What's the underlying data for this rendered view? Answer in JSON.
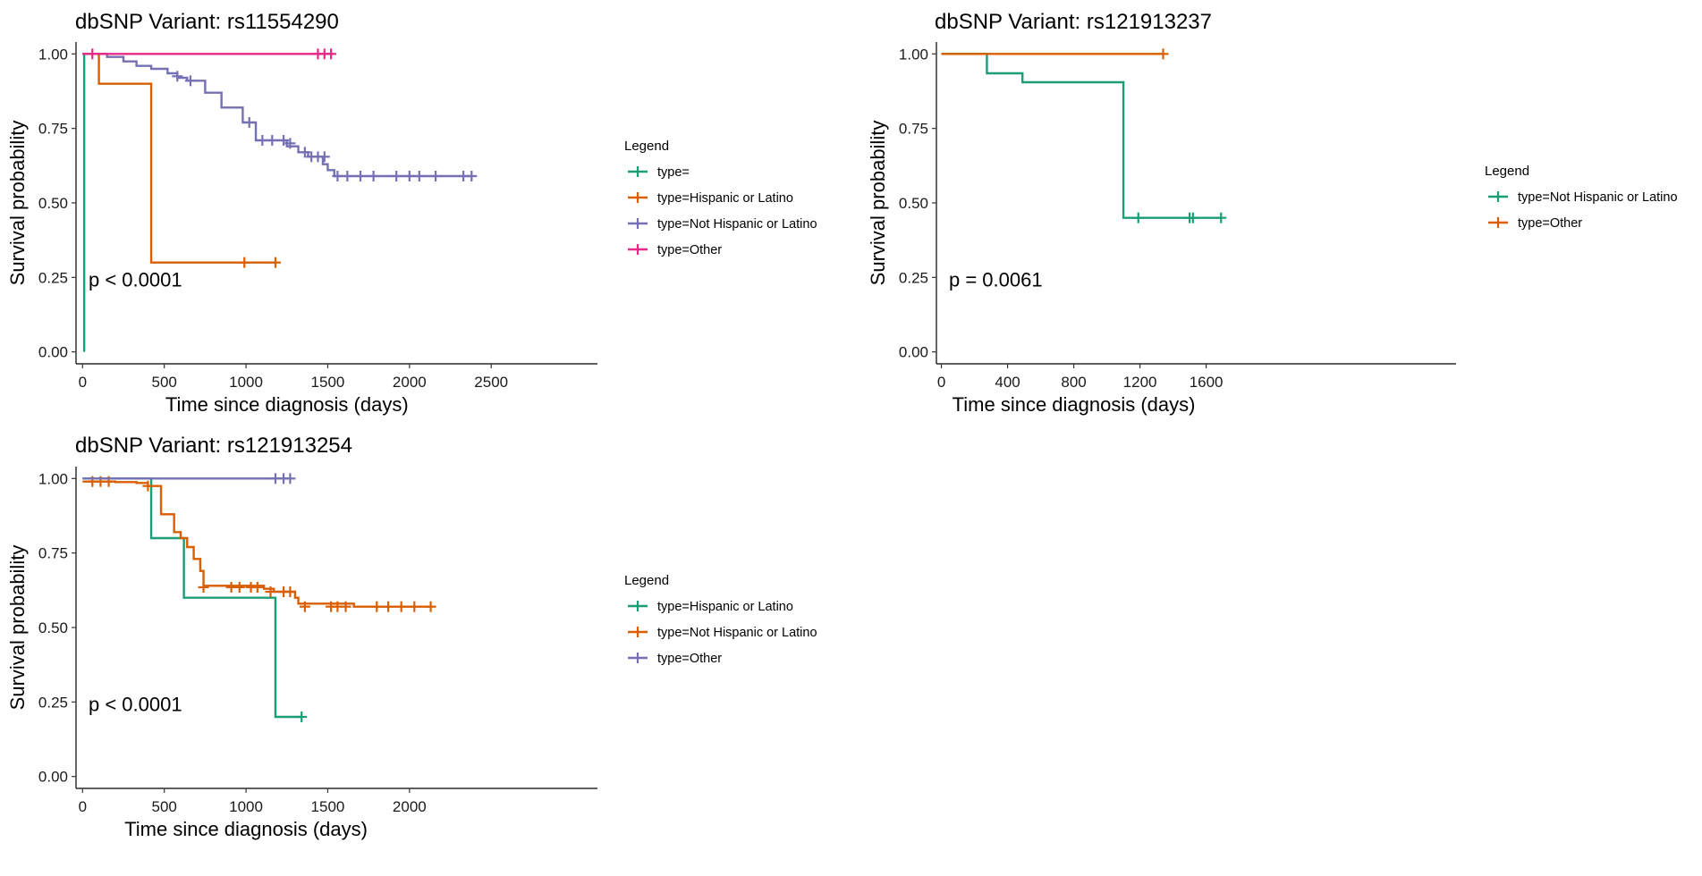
{
  "chart_data": [
    {
      "type": "line",
      "title": "dbSNP Variant: rs11554290",
      "xlabel": "Time since diagnosis (days)",
      "ylabel": "Survival probability",
      "xlim": [
        -40,
        3150
      ],
      "ylim": [
        -0.04,
        1.04
      ],
      "xticks": [
        0,
        500,
        1000,
        1500,
        2000,
        2500
      ],
      "xtick_labels": [
        "0",
        "500",
        "1000",
        "1500",
        "2000",
        "2500"
      ],
      "yticks": [
        0,
        0.25,
        0.5,
        0.75,
        1
      ],
      "ytick_labels": [
        "0.00",
        "0.25",
        "0.50",
        "0.75",
        "1.00"
      ],
      "pvalue": "p < 0.0001",
      "legend": {
        "title": "Legend",
        "position": "right"
      },
      "grid": false,
      "series": [
        {
          "name": "type=",
          "color": "#1b9e77",
          "steps": [
            [
              0,
              1
            ],
            [
              10,
              0
            ]
          ],
          "censors": []
        },
        {
          "name": "type=Hispanic or Latino",
          "color": "#d95f02",
          "steps": [
            [
              0,
              1
            ],
            [
              100,
              0.9
            ],
            [
              420,
              0.3
            ],
            [
              1190,
              0.3
            ]
          ],
          "censors": [
            [
              990,
              0.3
            ],
            [
              1180,
              0.3
            ]
          ]
        },
        {
          "name": "type=Not Hispanic or Latino",
          "color": "#7570b3",
          "steps": [
            [
              0,
              1
            ],
            [
              150,
              0.99
            ],
            [
              250,
              0.975
            ],
            [
              330,
              0.96
            ],
            [
              420,
              0.95
            ],
            [
              520,
              0.935
            ],
            [
              580,
              0.92
            ],
            [
              640,
              0.91
            ],
            [
              750,
              0.87
            ],
            [
              850,
              0.82
            ],
            [
              980,
              0.77
            ],
            [
              1060,
              0.71
            ],
            [
              1250,
              0.69
            ],
            [
              1320,
              0.67
            ],
            [
              1380,
              0.655
            ],
            [
              1470,
              0.63
            ],
            [
              1500,
              0.61
            ],
            [
              1540,
              0.59
            ],
            [
              2390,
              0.59
            ]
          ],
          "censors": [
            [
              580,
              0.925
            ],
            [
              660,
              0.91
            ],
            [
              1020,
              0.77
            ],
            [
              1100,
              0.71
            ],
            [
              1160,
              0.71
            ],
            [
              1230,
              0.71
            ],
            [
              1270,
              0.7
            ],
            [
              1360,
              0.67
            ],
            [
              1400,
              0.655
            ],
            [
              1440,
              0.655
            ],
            [
              1480,
              0.655
            ],
            [
              1560,
              0.59
            ],
            [
              1620,
              0.59
            ],
            [
              1700,
              0.59
            ],
            [
              1780,
              0.59
            ],
            [
              1920,
              0.59
            ],
            [
              2000,
              0.59
            ],
            [
              2060,
              0.59
            ],
            [
              2160,
              0.59
            ],
            [
              2330,
              0.59
            ],
            [
              2380,
              0.59
            ]
          ]
        },
        {
          "name": "type=Other",
          "color": "#e7298a",
          "steps": [
            [
              0,
              1
            ],
            [
              1530,
              1
            ]
          ],
          "censors": [
            [
              60,
              1
            ],
            [
              1440,
              1
            ],
            [
              1480,
              1
            ],
            [
              1520,
              1
            ]
          ]
        }
      ]
    },
    {
      "type": "line",
      "title": "dbSNP Variant: rs121913237",
      "xlabel": "Time since diagnosis (days)",
      "ylabel": "Survival probability",
      "xlim": [
        -30,
        3110
      ],
      "ylim": [
        -0.04,
        1.04
      ],
      "xticks": [
        0,
        400,
        800,
        1200,
        1600
      ],
      "xtick_labels": [
        "0",
        "400",
        "800",
        "1200",
        "1600"
      ],
      "yticks": [
        0,
        0.25,
        0.5,
        0.75,
        1
      ],
      "ytick_labels": [
        "0.00",
        "0.25",
        "0.50",
        "0.75",
        "1.00"
      ],
      "pvalue": "p = 0.0061",
      "legend": {
        "title": "Legend",
        "position": "right"
      },
      "grid": false,
      "series": [
        {
          "name": "type=Not Hispanic or Latino",
          "color": "#1b9e77",
          "steps": [
            [
              0,
              1
            ],
            [
              275,
              0.935
            ],
            [
              490,
              0.905
            ],
            [
              1100,
              0.45
            ],
            [
              1690,
              0.45
            ]
          ],
          "censors": [
            [
              1190,
              0.45
            ],
            [
              1500,
              0.45
            ],
            [
              1520,
              0.45
            ],
            [
              1690,
              0.45
            ]
          ]
        },
        {
          "name": "type=Other",
          "color": "#d95f02",
          "steps": [
            [
              0,
              1
            ],
            [
              1340,
              1
            ]
          ],
          "censors": [
            [
              1340,
              1
            ]
          ]
        }
      ]
    },
    {
      "type": "line",
      "title": "dbSNP Variant: rs121913254",
      "xlabel": "Time since diagnosis (days)",
      "ylabel": "Survival probability",
      "xlim": [
        -40,
        3150
      ],
      "ylim": [
        -0.04,
        1.04
      ],
      "xticks": [
        0,
        500,
        1000,
        1500,
        2000
      ],
      "xtick_labels": [
        "0",
        "500",
        "1000",
        "1500",
        "2000"
      ],
      "yticks": [
        0,
        0.25,
        0.5,
        0.75,
        1
      ],
      "ytick_labels": [
        "0.00",
        "0.25",
        "0.50",
        "0.75",
        "1.00"
      ],
      "pvalue": "p < 0.0001",
      "legend": {
        "title": "Legend",
        "position": "right"
      },
      "grid": false,
      "series": [
        {
          "name": "type=Hispanic or Latino",
          "color": "#1b9e77",
          "steps": [
            [
              0,
              1
            ],
            [
              420,
              0.8
            ],
            [
              620,
              0.6
            ],
            [
              1180,
              0.2
            ],
            [
              1340,
              0.2
            ]
          ],
          "censors": [
            [
              1340,
              0.2
            ]
          ]
        },
        {
          "name": "type=Not Hispanic or Latino",
          "color": "#d95f02",
          "steps": [
            [
              0,
              0.99
            ],
            [
              200,
              0.988
            ],
            [
              330,
              0.985
            ],
            [
              400,
              0.975
            ],
            [
              480,
              0.88
            ],
            [
              560,
              0.82
            ],
            [
              600,
              0.8
            ],
            [
              640,
              0.77
            ],
            [
              680,
              0.73
            ],
            [
              720,
              0.69
            ],
            [
              740,
              0.64
            ],
            [
              1110,
              0.63
            ],
            [
              1170,
              0.62
            ],
            [
              1300,
              0.6
            ],
            [
              1320,
              0.58
            ],
            [
              1660,
              0.57
            ],
            [
              2140,
              0.57
            ]
          ],
          "censors": [
            [
              60,
              0.99
            ],
            [
              110,
              0.99
            ],
            [
              160,
              0.99
            ],
            [
              400,
              0.975
            ],
            [
              740,
              0.635
            ],
            [
              910,
              0.635
            ],
            [
              960,
              0.635
            ],
            [
              1030,
              0.635
            ],
            [
              1070,
              0.635
            ],
            [
              1150,
              0.62
            ],
            [
              1230,
              0.62
            ],
            [
              1270,
              0.62
            ],
            [
              1360,
              0.57
            ],
            [
              1520,
              0.57
            ],
            [
              1560,
              0.57
            ],
            [
              1610,
              0.57
            ],
            [
              1800,
              0.57
            ],
            [
              1870,
              0.57
            ],
            [
              1950,
              0.57
            ],
            [
              2030,
              0.57
            ],
            [
              2130,
              0.57
            ]
          ]
        },
        {
          "name": "type=Other",
          "color": "#7570b3",
          "steps": [
            [
              0,
              1
            ],
            [
              1280,
              1
            ]
          ],
          "censors": [
            [
              1180,
              1
            ],
            [
              1230,
              1
            ],
            [
              1270,
              1
            ]
          ]
        }
      ]
    }
  ]
}
